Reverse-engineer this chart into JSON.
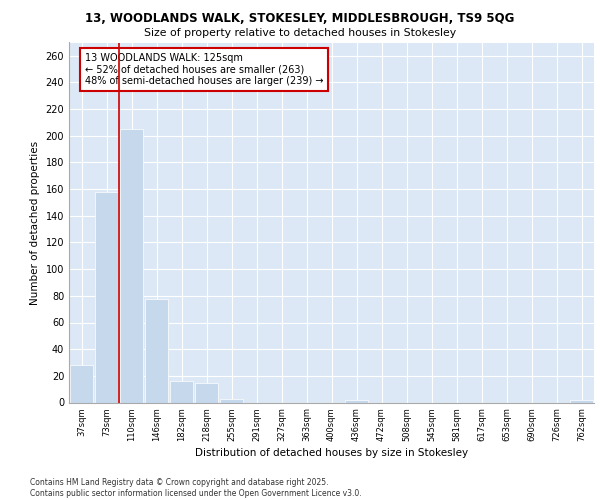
{
  "title_line1": "13, WOODLANDS WALK, STOKESLEY, MIDDLESBROUGH, TS9 5QG",
  "title_line2": "Size of property relative to detached houses in Stokesley",
  "xlabel": "Distribution of detached houses by size in Stokesley",
  "ylabel": "Number of detached properties",
  "bar_categories": [
    "37sqm",
    "73sqm",
    "110sqm",
    "146sqm",
    "182sqm",
    "218sqm",
    "255sqm",
    "291sqm",
    "327sqm",
    "363sqm",
    "400sqm",
    "436sqm",
    "472sqm",
    "508sqm",
    "545sqm",
    "581sqm",
    "617sqm",
    "653sqm",
    "690sqm",
    "726sqm",
    "762sqm"
  ],
  "bar_values": [
    28,
    158,
    205,
    78,
    16,
    15,
    3,
    0,
    0,
    0,
    0,
    2,
    0,
    0,
    0,
    0,
    0,
    0,
    0,
    0,
    2
  ],
  "bar_color": "#c5d8ec",
  "bar_edge_color": "#c5d8ec",
  "property_line_bin": 1.5,
  "annotation_text": "13 WOODLANDS WALK: 125sqm\n← 52% of detached houses are smaller (263)\n48% of semi-detached houses are larger (239) →",
  "annotation_box_color": "#ffffff",
  "annotation_box_edge_color": "#cc0000",
  "line_color": "#cc0000",
  "ylim": [
    0,
    270
  ],
  "yticks": [
    0,
    20,
    40,
    60,
    80,
    100,
    120,
    140,
    160,
    180,
    200,
    220,
    240,
    260
  ],
  "background_color": "#dce8f5",
  "footer_line1": "Contains HM Land Registry data © Crown copyright and database right 2025.",
  "footer_line2": "Contains public sector information licensed under the Open Government Licence v3.0."
}
